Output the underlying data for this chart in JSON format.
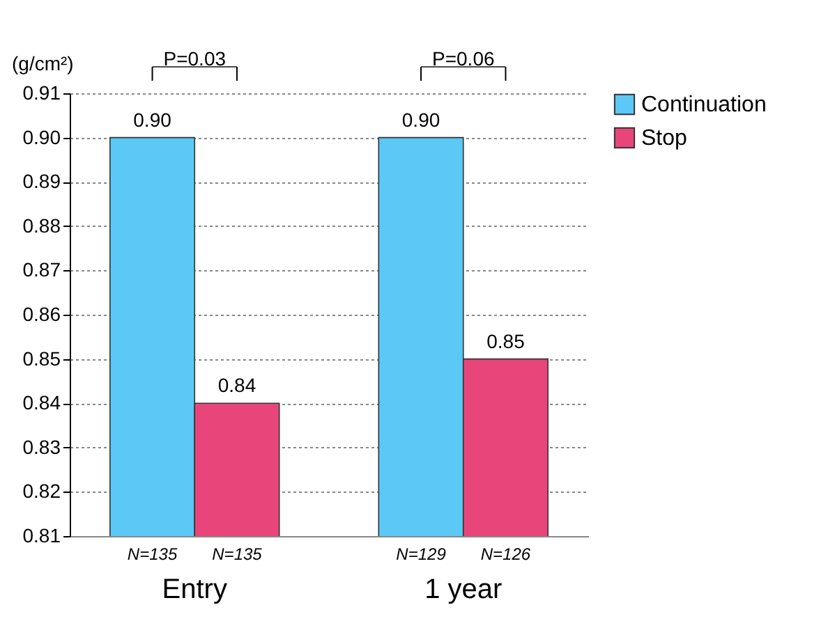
{
  "chart_data": {
    "type": "bar",
    "ylabel": "(g/cm²)",
    "categories": [
      "Entry",
      "1 year"
    ],
    "series": [
      {
        "name": "Continuation",
        "color": "#5bc8f5",
        "values": [
          0.9,
          0.9
        ],
        "value_labels": [
          "0.90",
          "0.90"
        ]
      },
      {
        "name": "Stop",
        "color": "#e8457a",
        "values": [
          0.84,
          0.85
        ],
        "value_labels": [
          "0.84",
          "0.85"
        ]
      }
    ],
    "ylim": [
      0.81,
      0.91
    ],
    "yticks": [
      0.81,
      0.82,
      0.83,
      0.84,
      0.85,
      0.86,
      0.87,
      0.88,
      0.89,
      {
        "value": 0.9,
        "label": "0.90"
      },
      0.91
    ],
    "grid": "y",
    "legend": "right",
    "annotations": [
      "N=135",
      "N=135",
      "N=129",
      "N=126",
      "P=0.03",
      "P=0.06"
    ]
  }
}
